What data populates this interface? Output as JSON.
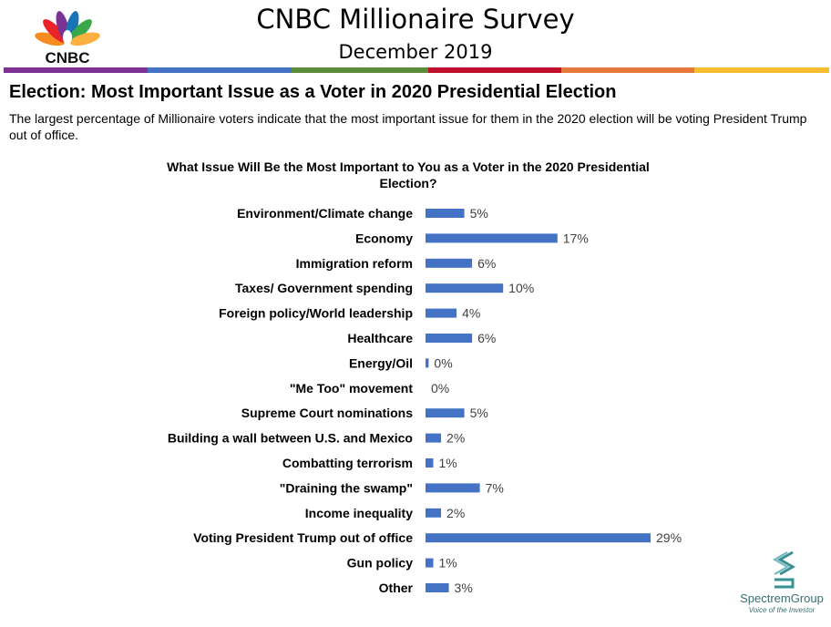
{
  "header": {
    "logo_text": "CNBC",
    "title": "CNBC Millionaire Survey",
    "subtitle": "December 2019",
    "color_bar": [
      "#7b3294",
      "#4472c4",
      "#5b8c3a",
      "#c0102b",
      "#e8793a",
      "#f6bd30"
    ]
  },
  "section": {
    "heading": "Election: Most Important Issue as a Voter in 2020 Presidential Election",
    "description": "The largest percentage of Millionaire voters indicate that the most important issue for them in the 2020 election will be voting President Trump out of office."
  },
  "chart_data": {
    "type": "bar",
    "orientation": "horizontal",
    "title_line1": "What Issue Will Be the Most Important to You as a Voter in the 2020 Presidential",
    "title_line2": "Election?",
    "categories": [
      "Environment/Climate change",
      "Economy",
      "Immigration reform",
      "Taxes/ Government spending",
      "Foreign policy/World leadership",
      "Healthcare",
      "Energy/Oil",
      "\"Me Too\" movement",
      "Supreme Court nominations",
      "Building a wall between U.S. and Mexico",
      "Combatting terrorism",
      "\"Draining the swamp\"",
      "Income inequality",
      "Voting President Trump out of office",
      "Gun policy",
      "Other"
    ],
    "values": [
      5,
      17,
      6,
      10,
      4,
      6,
      0.4,
      0,
      5,
      2,
      1,
      7,
      2,
      29,
      1,
      3
    ],
    "value_labels": [
      "5%",
      "17%",
      "6%",
      "10%",
      "4%",
      "6%",
      "0%",
      "0%",
      "5%",
      "2%",
      "1%",
      "7%",
      "2%",
      "29%",
      "1%",
      "3%"
    ],
    "bar_color": "#4472c4",
    "xlabel": "",
    "ylabel": "",
    "xlim": [
      0,
      29
    ],
    "grid": false,
    "legend": "none"
  },
  "footer": {
    "brand_name": "SpectremGroup",
    "brand_tagline": "Voice of the Investor"
  }
}
